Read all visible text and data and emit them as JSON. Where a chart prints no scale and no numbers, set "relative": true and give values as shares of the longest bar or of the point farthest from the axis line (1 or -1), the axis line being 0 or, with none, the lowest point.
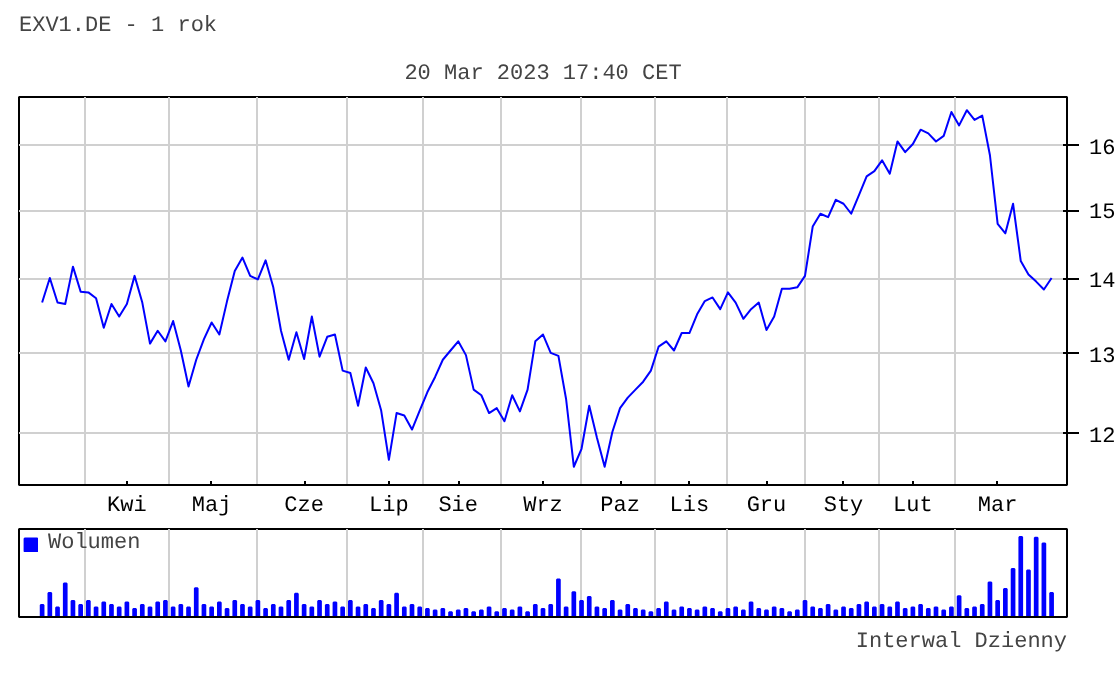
{
  "chart_data": [
    {
      "type": "line",
      "title": "EXV1.DE - 1 rok",
      "subtitle": "20 Mar 2023 17:40 CET",
      "categories": [
        null,
        null,
        null,
        null,
        null,
        null,
        null,
        null,
        null,
        null,
        null,
        "Kwi",
        null,
        null,
        null,
        null,
        null,
        null,
        null,
        null,
        null,
        null,
        "Maj",
        null,
        null,
        null,
        null,
        null,
        null,
        null,
        null,
        null,
        null,
        null,
        "Cze",
        null,
        null,
        null,
        null,
        null,
        null,
        null,
        null,
        null,
        null,
        "Lip",
        null,
        null,
        null,
        null,
        null,
        null,
        null,
        null,
        "Sie",
        null,
        null,
        null,
        null,
        null,
        null,
        null,
        null,
        null,
        null,
        "Wrz",
        null,
        null,
        null,
        null,
        null,
        null,
        null,
        null,
        null,
        "Paz",
        null,
        null,
        null,
        null,
        null,
        null,
        null,
        null,
        "Lis",
        null,
        null,
        null,
        null,
        null,
        null,
        null,
        null,
        null,
        "Gru",
        null,
        null,
        null,
        null,
        null,
        null,
        null,
        null,
        null,
        "Sty",
        null,
        null,
        null,
        null,
        null,
        null,
        null,
        null,
        "Lut",
        null,
        null,
        null,
        null,
        null,
        null,
        null,
        null,
        null,
        null,
        "Mar",
        null,
        null,
        null,
        null,
        null,
        null,
        null
      ],
      "series": [
        {
          "color": "#0000ff",
          "values": [
            13.68,
            14.02,
            13.68,
            13.66,
            14.18,
            13.83,
            13.82,
            13.74,
            13.34,
            13.66,
            13.49,
            13.66,
            14.05,
            13.68,
            13.13,
            13.3,
            13.16,
            13.43,
            13.04,
            12.58,
            12.92,
            13.19,
            13.41,
            13.25,
            13.7,
            14.12,
            14.31,
            14.05,
            14.0,
            14.27,
            13.89,
            13.3,
            12.92,
            13.28,
            12.93,
            13.49,
            12.96,
            13.22,
            13.25,
            12.78,
            12.75,
            12.34,
            12.82,
            12.62,
            12.28,
            11.69,
            12.25,
            12.22,
            12.05,
            12.28,
            12.51,
            12.7,
            12.92,
            13.04,
            13.16,
            12.98,
            12.54,
            12.47,
            12.25,
            12.31,
            12.15,
            12.47,
            12.27,
            12.54,
            13.16,
            13.25,
            13.01,
            12.97,
            12.42,
            11.61,
            11.82,
            12.34,
            11.95,
            11.61,
            12.02,
            12.31,
            12.44,
            12.54,
            12.64,
            12.78,
            13.09,
            13.16,
            13.04,
            13.27,
            13.27,
            13.52,
            13.7,
            13.75,
            13.59,
            13.82,
            13.68,
            13.46,
            13.59,
            13.68,
            13.31,
            13.49,
            13.87,
            13.87,
            13.89,
            14.05,
            14.76,
            14.95,
            14.9,
            15.16,
            15.1,
            14.95,
            15.23,
            15.52,
            15.6,
            15.77,
            15.56,
            16.07,
            15.9,
            16.03,
            16.26,
            16.2,
            16.07,
            16.16,
            16.55,
            16.33,
            16.58,
            16.42,
            16.49,
            15.85,
            14.8,
            14.66,
            15.1,
            14.26,
            14.07,
            13.97,
            13.86,
            14.02
          ]
        }
      ],
      "ylim": [
        11.4,
        16.8
      ],
      "yticks": [
        12,
        13,
        14,
        15,
        16
      ],
      "log": "y",
      "grid": true
    },
    {
      "type": "bar",
      "relative": true,
      "legend": "top left",
      "grid": "x",
      "annotations": [
        "Interwal Dzienny"
      ],
      "categories": [
        null,
        null,
        null,
        null,
        null,
        null,
        null,
        null,
        null,
        null,
        null,
        null,
        null,
        null,
        null,
        null,
        null,
        null,
        null,
        null,
        null,
        null,
        null,
        null,
        null,
        null,
        null,
        null,
        null,
        null,
        null,
        null,
        null,
        null,
        null,
        null,
        null,
        null,
        null,
        null,
        null,
        null,
        null,
        null,
        null,
        null,
        null,
        null,
        null,
        null,
        null,
        null,
        null,
        null,
        null,
        null,
        null,
        null,
        null,
        null,
        null,
        null,
        null,
        null,
        null,
        null,
        null,
        null,
        null,
        null,
        null,
        null,
        null,
        null,
        null,
        null,
        null,
        null,
        null,
        null,
        null,
        null,
        null,
        null,
        null,
        null,
        null,
        null,
        null,
        null,
        null,
        null,
        null,
        null,
        null,
        null,
        null,
        null,
        null,
        null,
        null,
        null,
        null,
        null,
        null,
        null,
        null,
        null,
        null,
        null,
        null,
        null,
        null,
        null,
        null,
        null,
        null,
        null,
        null,
        null,
        null,
        null,
        null,
        null,
        null,
        null,
        null,
        null,
        null,
        null,
        null,
        null
      ],
      "series": [
        {
          "name": "Wolumen",
          "color": "#0000ff",
          "values": [
            0.15,
            0.3,
            0.12,
            0.42,
            0.2,
            0.15,
            0.2,
            0.12,
            0.18,
            0.15,
            0.12,
            0.18,
            0.1,
            0.15,
            0.12,
            0.18,
            0.2,
            0.12,
            0.15,
            0.12,
            0.36,
            0.15,
            0.12,
            0.18,
            0.1,
            0.2,
            0.15,
            0.12,
            0.2,
            0.1,
            0.15,
            0.12,
            0.2,
            0.29,
            0.15,
            0.12,
            0.2,
            0.15,
            0.18,
            0.12,
            0.2,
            0.12,
            0.15,
            0.1,
            0.2,
            0.15,
            0.29,
            0.12,
            0.15,
            0.12,
            0.1,
            0.08,
            0.1,
            0.06,
            0.08,
            0.1,
            0.06,
            0.08,
            0.12,
            0.06,
            0.1,
            0.08,
            0.12,
            0.06,
            0.15,
            0.1,
            0.15,
            0.47,
            0.12,
            0.31,
            0.2,
            0.25,
            0.12,
            0.1,
            0.2,
            0.08,
            0.15,
            0.1,
            0.08,
            0.06,
            0.1,
            0.18,
            0.08,
            0.12,
            0.1,
            0.08,
            0.12,
            0.1,
            0.06,
            0.1,
            0.12,
            0.08,
            0.18,
            0.1,
            0.08,
            0.12,
            0.1,
            0.06,
            0.08,
            0.2,
            0.12,
            0.1,
            0.15,
            0.08,
            0.12,
            0.1,
            0.15,
            0.18,
            0.12,
            0.15,
            0.12,
            0.18,
            0.1,
            0.12,
            0.15,
            0.1,
            0.12,
            0.08,
            0.12,
            0.26,
            0.1,
            0.12,
            0.15,
            0.43,
            0.2,
            0.35,
            0.6,
            1.0,
            0.58,
            0.99,
            0.92,
            0.3
          ]
        }
      ]
    }
  ]
}
